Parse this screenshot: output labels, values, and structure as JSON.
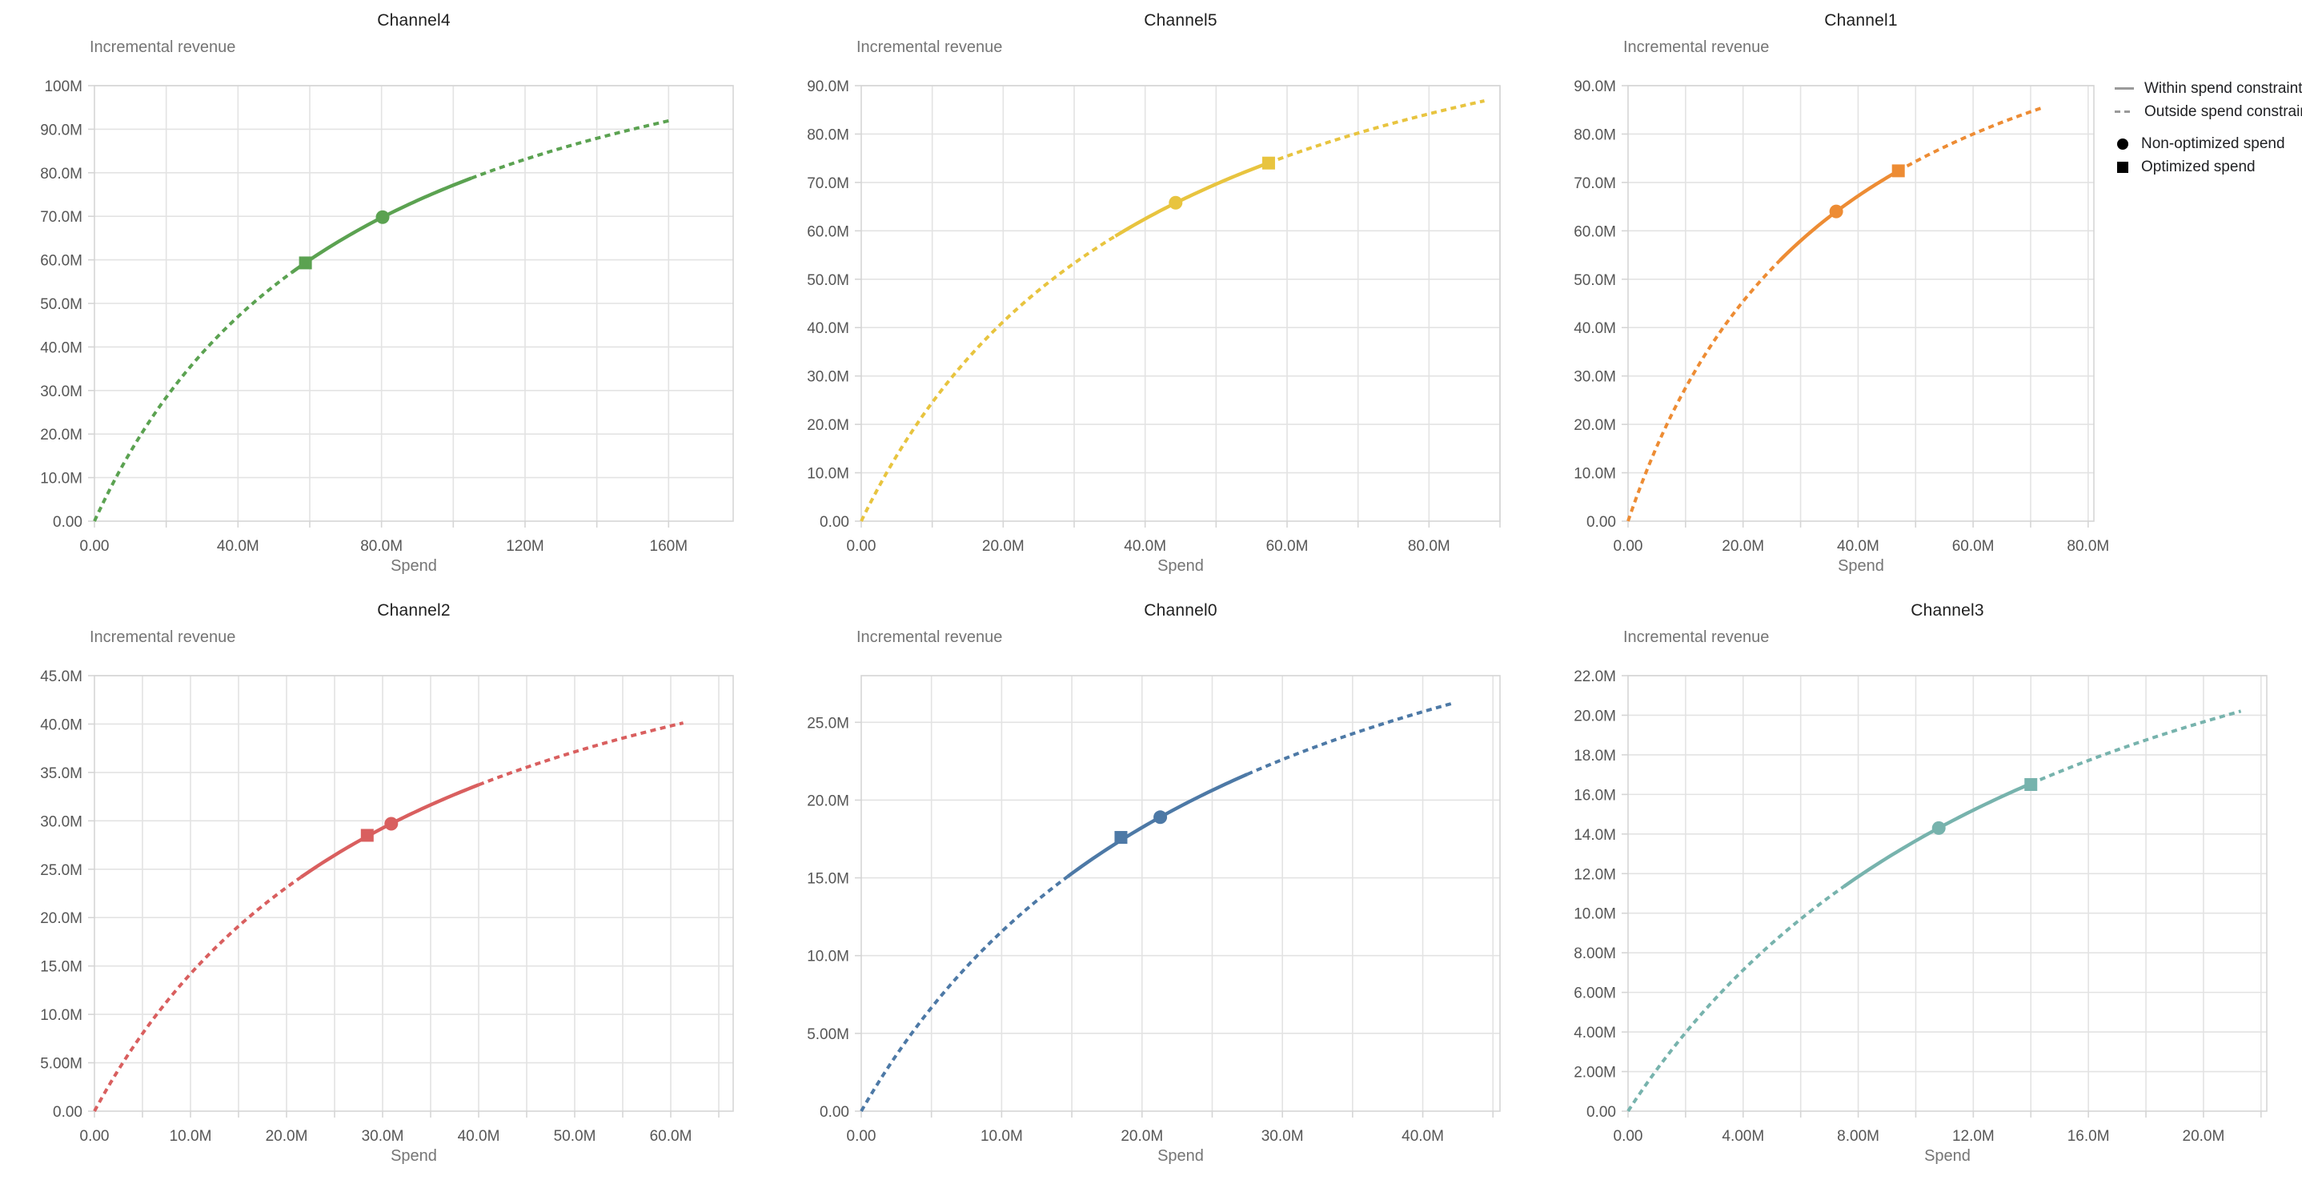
{
  "page": {
    "background": "#ffffff",
    "grid_color": "#e3e3e3",
    "border_color": "#d5d5d5",
    "tick_color": "#d5d5d5",
    "tick_label_color": "#565656",
    "axis_title_color": "#757575"
  },
  "legend": {
    "items": [
      {
        "label": "Within spend constraint",
        "swatch": "solid-line-icon"
      },
      {
        "label": "Outside spend constraint",
        "swatch": "dashed-line-icon"
      },
      {
        "label": "Non-optimized spend",
        "swatch": "circle-marker-icon"
      },
      {
        "label": "Optimized spend",
        "swatch": "square-marker-icon"
      }
    ],
    "line_swatch_color": "#9a9a9a",
    "marker_swatch_color": "#000000"
  },
  "chart_data": [
    {
      "type": "line",
      "title": "Channel4",
      "xlabel": "Spend",
      "ylabel": "Incremental revenue",
      "color": "#5ba251",
      "units": "M (millions)",
      "x_domain": [
        0,
        178
      ],
      "y_domain": [
        0,
        100
      ],
      "x_grid_step": 20,
      "x_ticks": [
        {
          "value": 0,
          "label": "0.00"
        },
        {
          "value": 40,
          "label": "40.0M"
        },
        {
          "value": 80,
          "label": "80.0M"
        },
        {
          "value": 120,
          "label": "120M"
        },
        {
          "value": 160,
          "label": "160M"
        }
      ],
      "y_ticks": [
        {
          "value": 0,
          "label": "0.00"
        },
        {
          "value": 10,
          "label": "10.0M"
        },
        {
          "value": 20,
          "label": "20.0M"
        },
        {
          "value": 30,
          "label": "30.0M"
        },
        {
          "value": 40,
          "label": "40.0M"
        },
        {
          "value": 50,
          "label": "50.0M"
        },
        {
          "value": 60,
          "label": "60.0M"
        },
        {
          "value": 70,
          "label": "70.0M"
        },
        {
          "value": 80,
          "label": "80.0M"
        },
        {
          "value": 90,
          "label": "90.0M"
        },
        {
          "value": 100,
          "label": "100M"
        }
      ],
      "curve": {
        "formula": "y = ymax*x/(x+k)",
        "ymax": 135,
        "k": 75,
        "x_start": 0,
        "x_end": 160
      },
      "solid_range": [
        55,
        105
      ],
      "points": {
        "non_optimized_spend": {
          "marker": "circle",
          "x": 80.3,
          "y": 69.8
        },
        "optimized_spend": {
          "marker": "square",
          "x": 58.8,
          "y": 59.3
        }
      },
      "has_legend": false
    },
    {
      "type": "line",
      "title": "Channel5",
      "xlabel": "Spend",
      "ylabel": "Incremental revenue",
      "color": "#e8c43f",
      "units": "M (millions)",
      "x_domain": [
        0,
        90
      ],
      "y_domain": [
        0,
        90
      ],
      "x_grid_step": 10,
      "x_ticks": [
        {
          "value": 0,
          "label": "0.00"
        },
        {
          "value": 20,
          "label": "20.0M"
        },
        {
          "value": 40,
          "label": "40.0M"
        },
        {
          "value": 60,
          "label": "60.0M"
        },
        {
          "value": 80,
          "label": "80.0M"
        }
      ],
      "y_ticks": [
        {
          "value": 0,
          "label": "0.00"
        },
        {
          "value": 10,
          "label": "10.0M"
        },
        {
          "value": 20,
          "label": "20.0M"
        },
        {
          "value": 30,
          "label": "30.0M"
        },
        {
          "value": 40,
          "label": "40.0M"
        },
        {
          "value": 50,
          "label": "50.0M"
        },
        {
          "value": 60,
          "label": "60.0M"
        },
        {
          "value": 70,
          "label": "70.0M"
        },
        {
          "value": 80,
          "label": "80.0M"
        },
        {
          "value": 90,
          "label": "90.0M"
        }
      ],
      "curve": {
        "formula": "y = ymax*x/(x+k)",
        "ymax": 129,
        "k": 42.6,
        "x_start": 0,
        "x_end": 87.8
      },
      "solid_range": [
        35.8,
        57.4
      ],
      "points": {
        "non_optimized_spend": {
          "marker": "circle",
          "x": 44.3,
          "y": 65.8
        },
        "optimized_spend": {
          "marker": "square",
          "x": 57.4,
          "y": 74.0
        }
      },
      "has_legend": false
    },
    {
      "type": "line",
      "title": "Channel1",
      "xlabel": "Spend",
      "ylabel": "Incremental revenue",
      "color": "#ed8c34",
      "units": "M (millions)",
      "x_domain": [
        0,
        81
      ],
      "y_domain": [
        0,
        90
      ],
      "x_grid_step": 10,
      "x_ticks": [
        {
          "value": 0,
          "label": "0.00"
        },
        {
          "value": 20,
          "label": "20.0M"
        },
        {
          "value": 40,
          "label": "40.0M"
        },
        {
          "value": 60,
          "label": "60.0M"
        },
        {
          "value": 80,
          "label": "80.0M"
        }
      ],
      "y_ticks": [
        {
          "value": 0,
          "label": "0.00"
        },
        {
          "value": 10,
          "label": "10.0M"
        },
        {
          "value": 20,
          "label": "20.0M"
        },
        {
          "value": 30,
          "label": "30.0M"
        },
        {
          "value": 40,
          "label": "40.0M"
        },
        {
          "value": 50,
          "label": "50.0M"
        },
        {
          "value": 60,
          "label": "60.0M"
        },
        {
          "value": 70,
          "label": "70.0M"
        },
        {
          "value": 80,
          "label": "80.0M"
        },
        {
          "value": 90,
          "label": "90.0M"
        }
      ],
      "curve": {
        "formula": "y = ymax*x/(x+k)",
        "ymax": 129.2,
        "k": 36.9,
        "x_start": 0,
        "x_end": 72.1
      },
      "solid_range": [
        26.4,
        47.0
      ],
      "points": {
        "non_optimized_spend": {
          "marker": "circle",
          "x": 36.2,
          "y": 64.0
        },
        "optimized_spend": {
          "marker": "square",
          "x": 47.0,
          "y": 72.4
        }
      },
      "has_legend": true
    },
    {
      "type": "line",
      "title": "Channel2",
      "xlabel": "Spend",
      "ylabel": "Incremental revenue",
      "color": "#d95f5f",
      "units": "M (millions)",
      "x_domain": [
        0,
        66.5
      ],
      "y_domain": [
        0,
        45
      ],
      "x_grid_step": 5,
      "x_ticks": [
        {
          "value": 0,
          "label": "0.00"
        },
        {
          "value": 10,
          "label": "10.0M"
        },
        {
          "value": 20,
          "label": "20.0M"
        },
        {
          "value": 30,
          "label": "30.0M"
        },
        {
          "value": 40,
          "label": "40.0M"
        },
        {
          "value": 50,
          "label": "50.0M"
        },
        {
          "value": 60,
          "label": "60.0M"
        }
      ],
      "y_ticks": [
        {
          "value": 0,
          "label": "0.00"
        },
        {
          "value": 5,
          "label": "5.00M"
        },
        {
          "value": 10,
          "label": "10.0M"
        },
        {
          "value": 15,
          "label": "15.0M"
        },
        {
          "value": 20,
          "label": "20.0M"
        },
        {
          "value": 25,
          "label": "25.0M"
        },
        {
          "value": 30,
          "label": "30.0M"
        },
        {
          "value": 35,
          "label": "35.0M"
        },
        {
          "value": 40,
          "label": "40.0M"
        },
        {
          "value": 45,
          "label": "45.0M"
        }
      ],
      "curve": {
        "formula": "y = ymax*x/(x+k)",
        "ymax": 62.3,
        "k": 33.9,
        "x_start": 0,
        "x_end": 61.3
      },
      "solid_range": [
        21.5,
        40.0
      ],
      "points": {
        "non_optimized_spend": {
          "marker": "circle",
          "x": 30.9,
          "y": 29.7
        },
        "optimized_spend": {
          "marker": "square",
          "x": 28.4,
          "y": 28.5
        }
      },
      "has_legend": false
    },
    {
      "type": "line",
      "title": "Channel0",
      "xlabel": "Spend",
      "ylabel": "Incremental revenue",
      "color": "#4d79a6",
      "units": "M (millions)",
      "x_domain": [
        0,
        45.5
      ],
      "y_domain": [
        0,
        28
      ],
      "x_grid_step": 5,
      "x_ticks": [
        {
          "value": 0,
          "label": "0.00"
        },
        {
          "value": 10,
          "label": "10.0M"
        },
        {
          "value": 20,
          "label": "20.0M"
        },
        {
          "value": 30,
          "label": "30.0M"
        },
        {
          "value": 40,
          "label": "40.0M"
        }
      ],
      "y_ticks": [
        {
          "value": 0,
          "label": "0.00"
        },
        {
          "value": 5,
          "label": "5.00M"
        },
        {
          "value": 10,
          "label": "10.0M"
        },
        {
          "value": 15,
          "label": "15.0M"
        },
        {
          "value": 20,
          "label": "20.0M"
        },
        {
          "value": 25,
          "label": "25.0M"
        }
      ],
      "curve": {
        "formula": "y = ymax*x/(x+k)",
        "ymax": 43.4,
        "k": 27.6,
        "x_start": 0,
        "x_end": 42.1
      },
      "solid_range": [
        14.7,
        27.5
      ],
      "points": {
        "non_optimized_spend": {
          "marker": "circle",
          "x": 21.3,
          "y": 18.9
        },
        "optimized_spend": {
          "marker": "square",
          "x": 18.5,
          "y": 17.6
        }
      },
      "has_legend": false
    },
    {
      "type": "line",
      "title": "Channel3",
      "xlabel": "Spend",
      "ylabel": "Incremental revenue",
      "color": "#77b3ad",
      "units": "M (millions)",
      "x_domain": [
        0,
        22.2
      ],
      "y_domain": [
        0,
        22
      ],
      "x_grid_step": 2,
      "x_ticks": [
        {
          "value": 0,
          "label": "0.00"
        },
        {
          "value": 4,
          "label": "4.00M"
        },
        {
          "value": 8,
          "label": "8.00M"
        },
        {
          "value": 12,
          "label": "12.0M"
        },
        {
          "value": 16,
          "label": "16.0M"
        },
        {
          "value": 20,
          "label": "20.0M"
        }
      ],
      "y_ticks": [
        {
          "value": 0,
          "label": "0.00"
        },
        {
          "value": 2,
          "label": "2.00M"
        },
        {
          "value": 4,
          "label": "4.00M"
        },
        {
          "value": 6,
          "label": "6.00M"
        },
        {
          "value": 8,
          "label": "8.00M"
        },
        {
          "value": 10,
          "label": "10.0M"
        },
        {
          "value": 12,
          "label": "12.0M"
        },
        {
          "value": 14,
          "label": "14.0M"
        },
        {
          "value": 16,
          "label": "16.0M"
        },
        {
          "value": 18,
          "label": "18.0M"
        },
        {
          "value": 20,
          "label": "20.0M"
        },
        {
          "value": 22,
          "label": "22.0M"
        }
      ],
      "curve": {
        "formula": "y = ymax*x/(x+k)",
        "ymax": 35.1,
        "k": 15.7,
        "x_start": 0,
        "x_end": 21.3
      },
      "solid_range": [
        7.5,
        14.0
      ],
      "points": {
        "non_optimized_spend": {
          "marker": "circle",
          "x": 10.8,
          "y": 14.3
        },
        "optimized_spend": {
          "marker": "square",
          "x": 14.0,
          "y": 16.5
        }
      },
      "has_legend": false
    }
  ]
}
